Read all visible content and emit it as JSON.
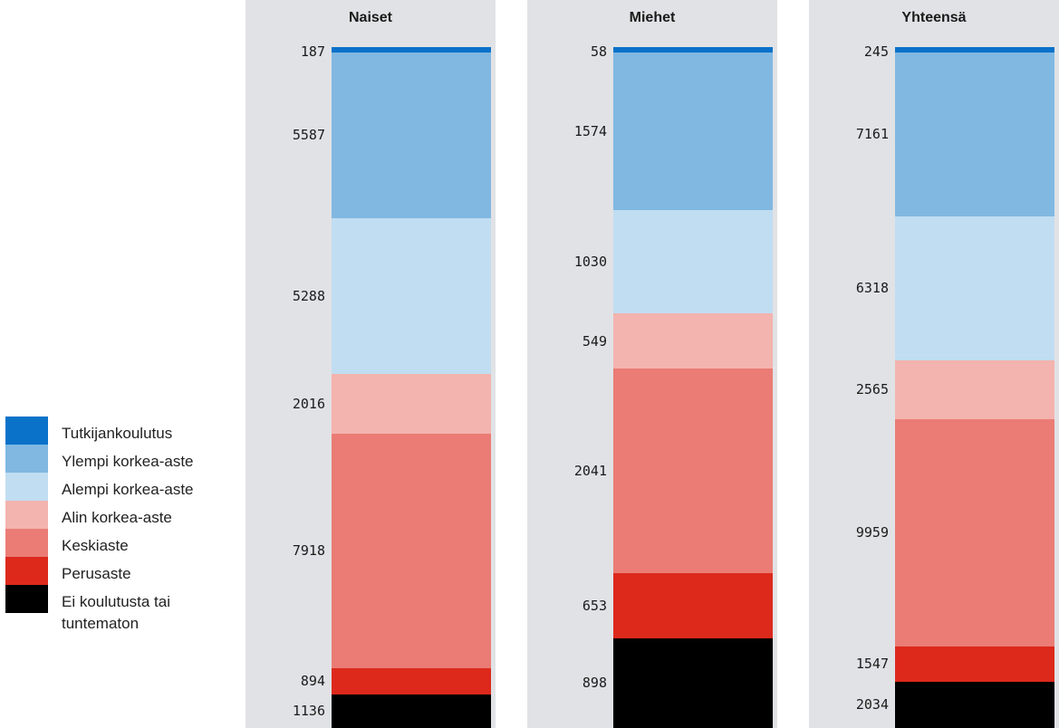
{
  "chart_data": {
    "type": "bar",
    "stacked": true,
    "orientation": "vertical",
    "normalized_to_percent": true,
    "legend_position": "left",
    "grid": false,
    "categories": [
      "Naiset",
      "Miehet",
      "Yhteensä"
    ],
    "series": [
      {
        "name": "Tutkijankoulutus",
        "color": "#0a72c9",
        "values": [
          187,
          58,
          245
        ]
      },
      {
        "name": "Ylempi korkea-aste",
        "color": "#81b8e2",
        "values": [
          5587,
          1574,
          7161
        ]
      },
      {
        "name": "Alempi korkea-aste",
        "color": "#c1ddf1",
        "values": [
          5288,
          1030,
          6318
        ]
      },
      {
        "name": "Alin korkea-aste",
        "color": "#f3b3ae",
        "values": [
          2016,
          549,
          2565
        ]
      },
      {
        "name": "Keskiaste",
        "color": "#ea7c75",
        "values": [
          7918,
          2041,
          9959
        ]
      },
      {
        "name": "Perusaste",
        "color": "#dc291c",
        "values": [
          894,
          653,
          1547
        ]
      },
      {
        "name": "Ei koulutusta tai tuntematon",
        "color": "#000000",
        "values": [
          1136,
          898,
          2034
        ]
      }
    ]
  },
  "legend": {
    "items": [
      {
        "label": "Tutkijankoulutus",
        "color": "#0a72c9"
      },
      {
        "label": "Ylempi korkea-aste",
        "color": "#81b8e2"
      },
      {
        "label": "Alempi korkea-aste",
        "color": "#c1ddf1"
      },
      {
        "label": "Alin korkea-aste",
        "color": "#f3b3ae"
      },
      {
        "label": "Keskiaste",
        "color": "#ea7c75"
      },
      {
        "label": "Perusaste",
        "color": "#dc291c"
      },
      {
        "label": "Ei koulutusta tai\ntuntematon",
        "color": "#000000"
      }
    ]
  },
  "colors": {
    "panel_background": "#e1e2e5",
    "page_background": "#ffffff"
  }
}
